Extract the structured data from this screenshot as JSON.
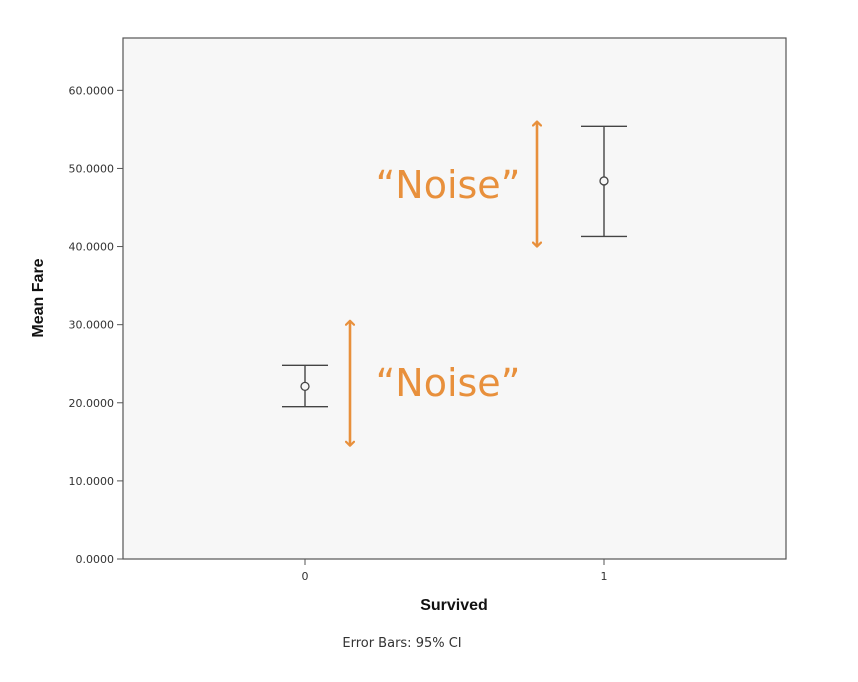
{
  "chart_data": {
    "type": "scatter",
    "xlabel": "Survived",
    "ylabel": "Mean Fare",
    "categories": [
      "0",
      "1"
    ],
    "ylim": [
      0,
      66.7
    ],
    "yticks": [
      "0.0000",
      "10.0000",
      "20.0000",
      "30.0000",
      "40.0000",
      "50.0000",
      "60.0000"
    ],
    "points": [
      {
        "x": "0",
        "mean": 22.1,
        "ci_low": 19.5,
        "ci_high": 24.8
      },
      {
        "x": "1",
        "mean": 48.4,
        "ci_low": 41.3,
        "ci_high": 55.4
      }
    ],
    "footnote": "Error Bars: 95% CI",
    "grid": false,
    "plot_background": "#f7f7f7",
    "annotations": [
      {
        "text": "“Noise”",
        "arrow_from": 56.0,
        "arrow_to": 40.0,
        "near": "1"
      },
      {
        "text": "“Noise”",
        "arrow_from": 30.5,
        "arrow_to": 14.5,
        "near": "0"
      }
    ],
    "annotation_color": "#e8903c"
  }
}
